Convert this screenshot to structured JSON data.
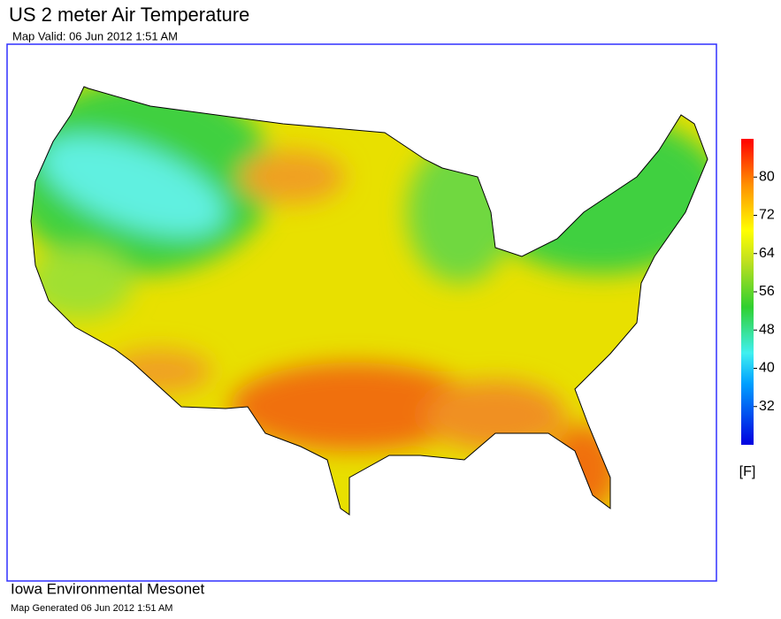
{
  "header": {
    "title": "US 2 meter Air Temperature",
    "subtitle": "Map Valid: 06 Jun 2012 1:51 AM"
  },
  "colorbar": {
    "unit": "[F]",
    "clim": [
      24,
      88
    ],
    "ticks": [
      32,
      40,
      48,
      56,
      64,
      72,
      80
    ]
  },
  "footer": {
    "source": "Iowa Environmental Mesonet",
    "generated": "Map Generated 06 Jun 2012 1:51 AM"
  }
}
